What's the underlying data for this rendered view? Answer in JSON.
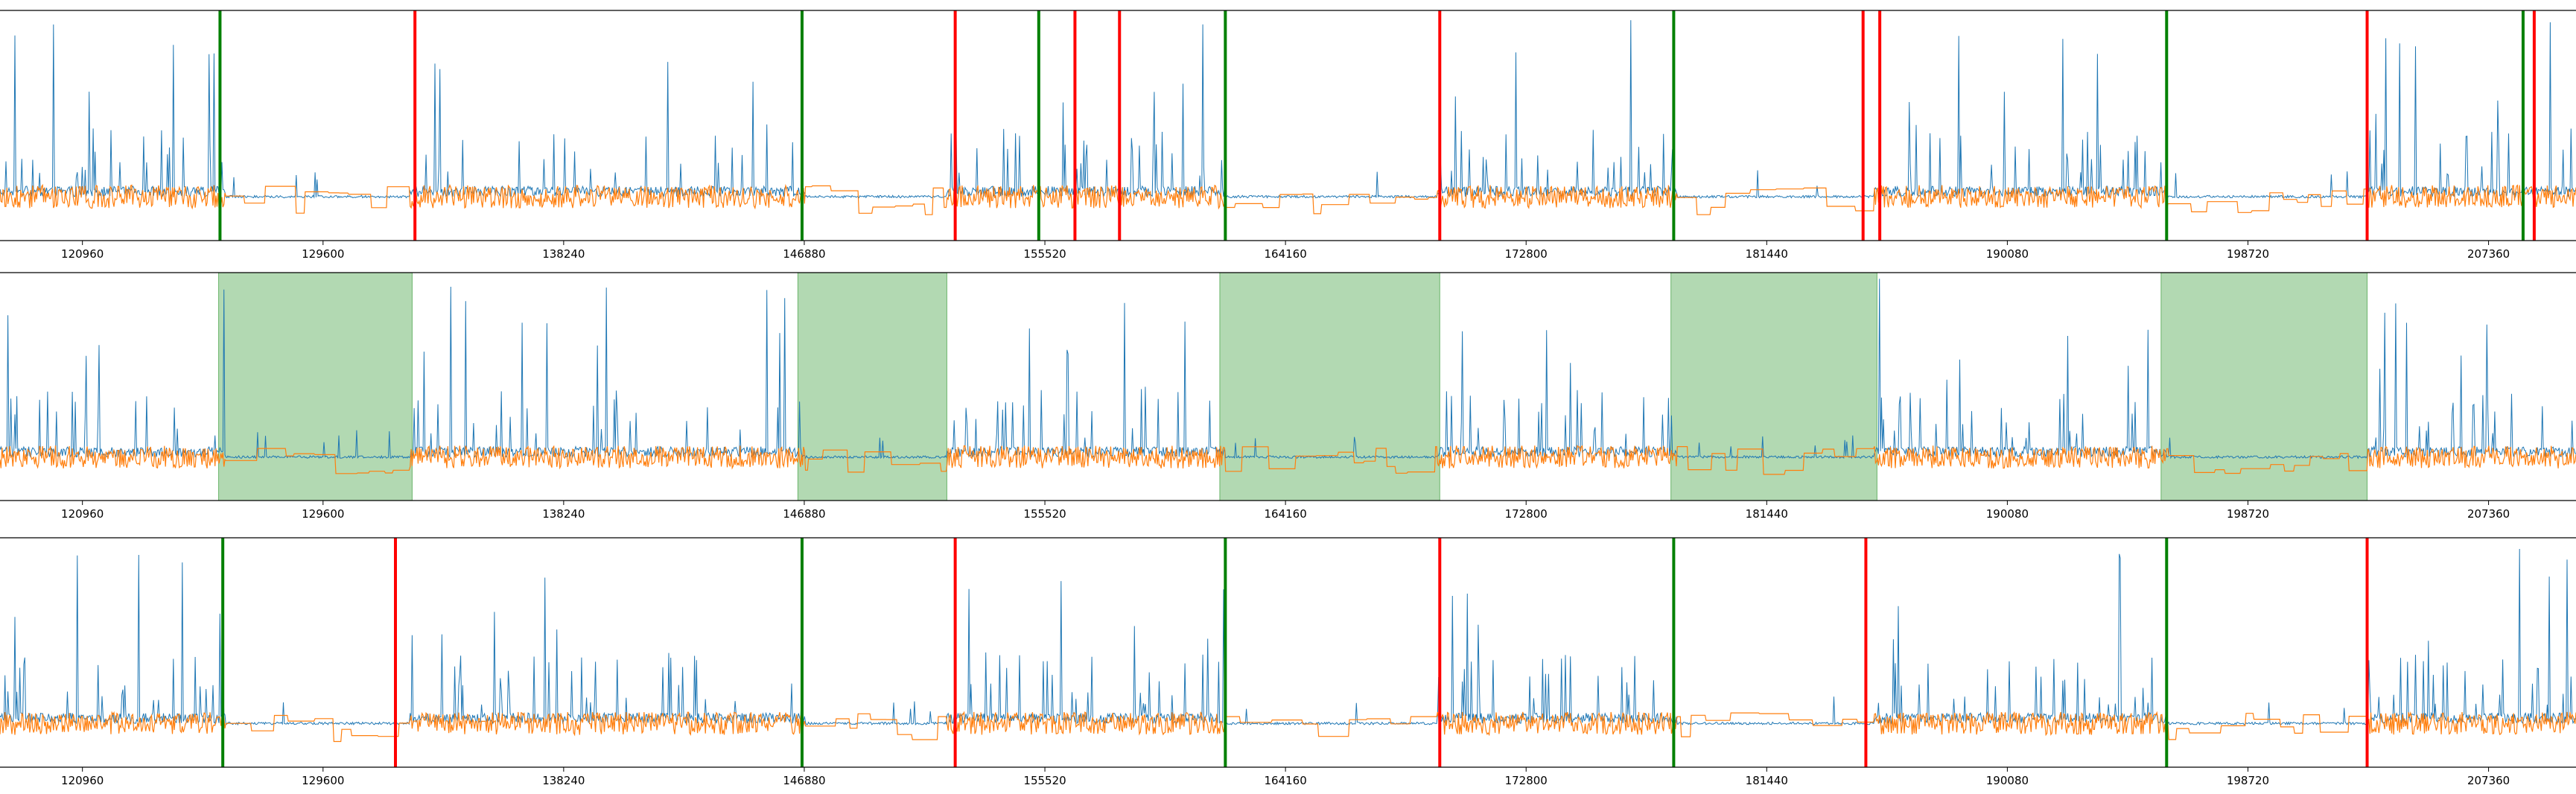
{
  "colors": {
    "series_primary": "#1f77b4",
    "series_secondary": "#ff7f0e",
    "start_marker": "#008000",
    "end_marker": "#ff0000",
    "interval_fill": "#008000",
    "axis": "#000000"
  },
  "chart_data": [
    {
      "type": "line",
      "panel": "top",
      "xlim": [
        118000,
        210500
      ],
      "ylim": [
        -1.0,
        4.5
      ],
      "x_ticks": [
        120960,
        129600,
        138240,
        146880,
        155520,
        164160,
        172800,
        181440,
        190080,
        198720,
        207360
      ],
      "x_tick_labels": [
        "120960",
        "129600",
        "138240",
        "146880",
        "155520",
        "164160",
        "172800",
        "181440",
        "190080",
        "198720",
        "207360"
      ],
      "series": [
        {
          "color": "#1f77b4",
          "style": "spiky-line"
        },
        {
          "color": "#ff7f0e",
          "style": "noisy-step-line"
        }
      ],
      "vlines": [
        {
          "x": 125900,
          "color": "#008000"
        },
        {
          "x": 132900,
          "color": "#ff0000"
        },
        {
          "x": 146800,
          "color": "#008000"
        },
        {
          "x": 152300,
          "color": "#ff0000"
        },
        {
          "x": 155300,
          "color": "#008000"
        },
        {
          "x": 156600,
          "color": "#ff0000"
        },
        {
          "x": 158200,
          "color": "#ff0000"
        },
        {
          "x": 162000,
          "color": "#008000"
        },
        {
          "x": 169700,
          "color": "#ff0000"
        },
        {
          "x": 178100,
          "color": "#008000"
        },
        {
          "x": 184900,
          "color": "#ff0000"
        },
        {
          "x": 185500,
          "color": "#ff0000"
        },
        {
          "x": 195800,
          "color": "#008000"
        },
        {
          "x": 203000,
          "color": "#ff0000"
        },
        {
          "x": 208600,
          "color": "#008000"
        },
        {
          "x": 209000,
          "color": "#ff0000"
        }
      ]
    },
    {
      "type": "line",
      "panel": "middle",
      "xlim": [
        118000,
        210500
      ],
      "ylim": [
        -1.0,
        4.5
      ],
      "x_ticks": [
        120960,
        129600,
        138240,
        146880,
        155520,
        164160,
        172800,
        181440,
        190080,
        198720,
        207360
      ],
      "x_tick_labels": [
        "120960",
        "129600",
        "138240",
        "146880",
        "155520",
        "164160",
        "172800",
        "181440",
        "190080",
        "198720",
        "207360"
      ],
      "series": [
        {
          "color": "#1f77b4",
          "style": "spiky-line"
        },
        {
          "color": "#ff7f0e",
          "style": "noisy-step-line"
        }
      ],
      "spans": [
        {
          "x0": 125850,
          "x1": 132800,
          "color": "#008000",
          "alpha": 0.3
        },
        {
          "x0": 146650,
          "x1": 152000,
          "color": "#008000",
          "alpha": 0.3
        },
        {
          "x0": 161800,
          "x1": 169700,
          "color": "#008000",
          "alpha": 0.3
        },
        {
          "x0": 178000,
          "x1": 185400,
          "color": "#008000",
          "alpha": 0.3
        },
        {
          "x0": 195600,
          "x1": 203000,
          "color": "#008000",
          "alpha": 0.3
        }
      ]
    },
    {
      "type": "line",
      "panel": "bottom",
      "xlim": [
        118000,
        210500
      ],
      "ylim": [
        -1.0,
        4.5
      ],
      "x_ticks": [
        120960,
        129600,
        138240,
        146880,
        155520,
        164160,
        172800,
        181440,
        190080,
        198720,
        207360
      ],
      "x_tick_labels": [
        "120960",
        "129600",
        "138240",
        "146880",
        "155520",
        "164160",
        "172800",
        "181440",
        "190080",
        "198720",
        "207360"
      ],
      "series": [
        {
          "color": "#1f77b4",
          "style": "spiky-line"
        },
        {
          "color": "#ff7f0e",
          "style": "noisy-step-line"
        }
      ],
      "vlines": [
        {
          "x": 126000,
          "color": "#008000"
        },
        {
          "x": 132200,
          "color": "#ff0000"
        },
        {
          "x": 146800,
          "color": "#008000"
        },
        {
          "x": 152300,
          "color": "#ff0000"
        },
        {
          "x": 162000,
          "color": "#008000"
        },
        {
          "x": 169700,
          "color": "#ff0000"
        },
        {
          "x": 178100,
          "color": "#008000"
        },
        {
          "x": 185000,
          "color": "#ff0000"
        },
        {
          "x": 195800,
          "color": "#008000"
        },
        {
          "x": 203000,
          "color": "#ff0000"
        }
      ]
    }
  ]
}
